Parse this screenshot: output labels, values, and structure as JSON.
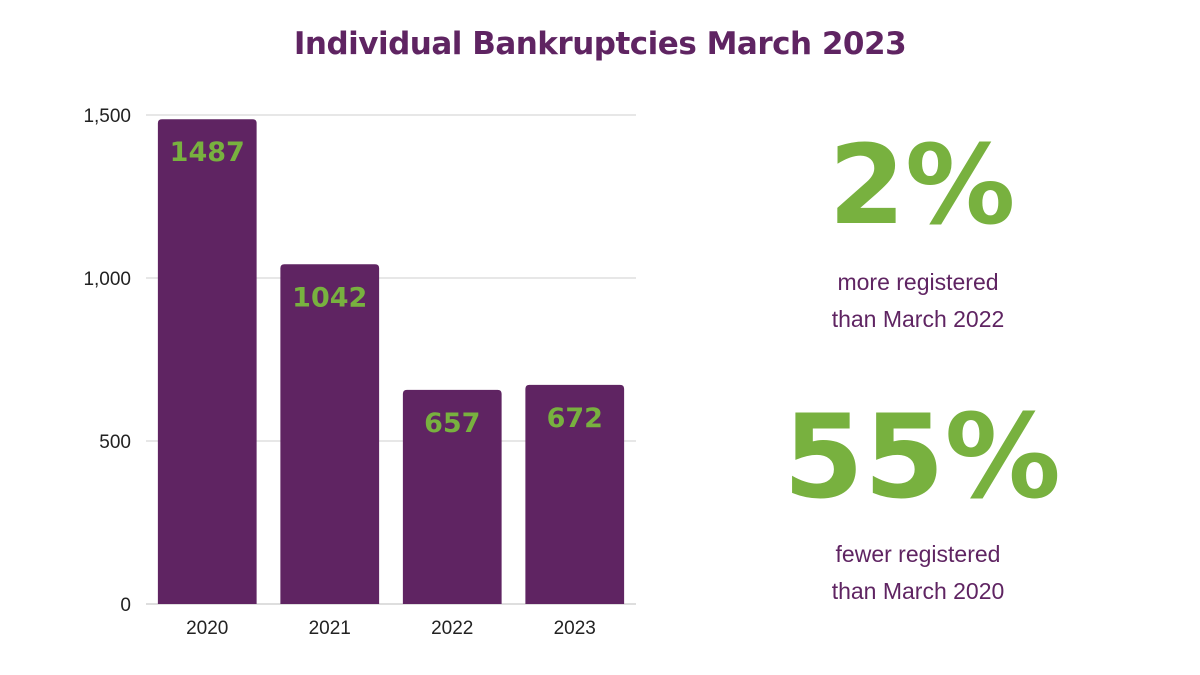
{
  "title": "Individual Bankruptcies March 2023",
  "colors": {
    "bar": "#5f2462",
    "accent_green": "#78b13f",
    "title": "#5f2462",
    "text_purple": "#5f2462",
    "axis_text": "#222222",
    "grid": "#cfcfcf"
  },
  "chart_data": {
    "type": "bar",
    "title": "Individual Bankruptcies March 2023",
    "categories": [
      "2020",
      "2021",
      "2022",
      "2023"
    ],
    "values": [
      1487,
      1042,
      657,
      672
    ],
    "data_labels": [
      "1487",
      "1042",
      "657",
      "672"
    ],
    "ylim": [
      0,
      1500
    ],
    "yticks": [
      0,
      500,
      1000,
      1500
    ],
    "ytick_labels": [
      "0",
      "500",
      "1,000",
      "1,500"
    ],
    "xlabel": "",
    "ylabel": "",
    "grid": true,
    "legend": "none"
  },
  "stats": [
    {
      "value": "2%",
      "line1": "more registered",
      "line2": "than March 2022"
    },
    {
      "value": "55%",
      "line1": "fewer registered",
      "line2": "than March 2020"
    }
  ]
}
